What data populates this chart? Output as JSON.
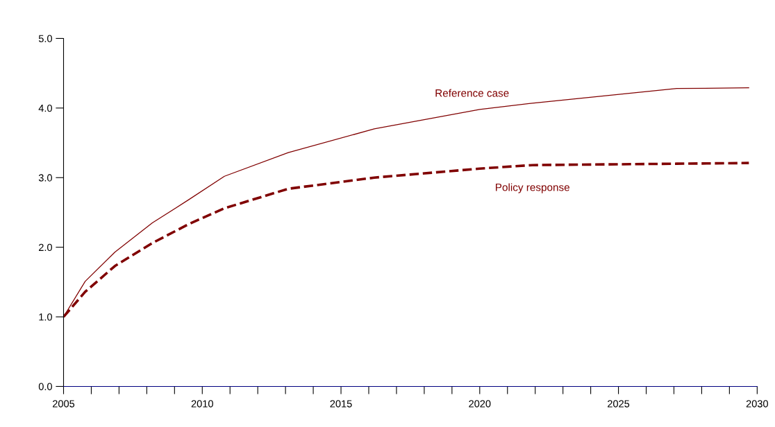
{
  "chart_data": {
    "type": "line",
    "x": [
      2005,
      2005.78,
      2006.85,
      2008.2,
      2009.5,
      2010.8,
      2013.1,
      2016.2,
      2020,
      2021.9,
      2027.1,
      2029.7
    ],
    "series": [
      {
        "name": "Reference case",
        "color": "#800000",
        "line_style": "solid",
        "values": [
          1.0,
          1.51,
          1.93,
          2.35,
          2.68,
          3.02,
          3.36,
          3.7,
          3.98,
          4.07,
          4.28,
          4.29
        ]
      },
      {
        "name": "Policy response",
        "color": "#800000",
        "line_style": "dashed",
        "values": [
          1.0,
          1.36,
          1.73,
          2.06,
          2.33,
          2.56,
          2.84,
          3.0,
          3.13,
          3.18,
          3.2,
          3.21
        ]
      }
    ],
    "xlim": [
      2005,
      2030
    ],
    "xticks": [
      2005,
      {
        "value": 2006,
        "label": null
      },
      {
        "value": 2007,
        "label": null
      },
      {
        "value": 2008,
        "label": null
      },
      {
        "value": 2009,
        "label": null
      },
      2010,
      {
        "value": 2011,
        "label": null
      },
      {
        "value": 2012,
        "label": null
      },
      {
        "value": 2013,
        "label": null
      },
      {
        "value": 2014,
        "label": null
      },
      2015,
      {
        "value": 2016,
        "label": null
      },
      {
        "value": 2017,
        "label": null
      },
      {
        "value": 2018,
        "label": null
      },
      {
        "value": 2019,
        "label": null
      },
      2020,
      {
        "value": 2021,
        "label": null
      },
      {
        "value": 2022,
        "label": null
      },
      {
        "value": 2023,
        "label": null
      },
      {
        "value": 2024,
        "label": null
      },
      2025,
      {
        "value": 2026,
        "label": null
      },
      {
        "value": 2027,
        "label": null
      },
      {
        "value": 2028,
        "label": null
      },
      {
        "value": 2029,
        "label": null
      },
      2030
    ],
    "ylim": [
      0,
      5
    ],
    "yticks": [
      {
        "value": 0,
        "label": "0.0"
      },
      {
        "value": 1,
        "label": "1.0"
      },
      {
        "value": 2,
        "label": "2.0"
      },
      {
        "value": 3,
        "label": "3.0"
      },
      {
        "value": 4,
        "label": "4.0"
      },
      {
        "value": 5,
        "label": "5.0"
      }
    ],
    "grid": false,
    "legend": false
  }
}
